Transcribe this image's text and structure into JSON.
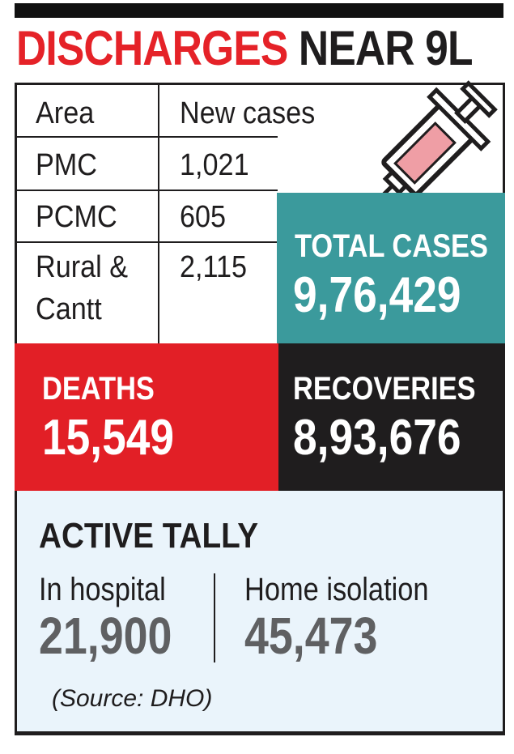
{
  "headline": {
    "part1": "DISCHARGES",
    "part2": "NEAR 9L"
  },
  "table": {
    "headers": [
      "Area",
      "New cases"
    ],
    "rows": [
      {
        "area": "PMC",
        "cases": "1,021"
      },
      {
        "area": "PCMC",
        "cases": "605"
      },
      {
        "area_line1": "Rural &",
        "area_line2": "Cantt",
        "cases": "2,115"
      }
    ]
  },
  "total_cases": {
    "label": "TOTAL CASES",
    "value": "9,76,429"
  },
  "deaths": {
    "label": "DEATHS",
    "value": "15,549"
  },
  "recoveries": {
    "label": "RECOVERIES",
    "value": "8,93,676"
  },
  "active_tally": {
    "title": "ACTIVE TALLY",
    "hospital_label": "In hospital",
    "hospital_value": "21,900",
    "home_label": "Home isolation",
    "home_value": "45,473"
  },
  "source": "(Source: DHO)",
  "icon": "syringe-icon",
  "colors": {
    "headline_red": "#e52228",
    "teal": "#3b9a9c",
    "deaths_red": "#e21f26",
    "recoveries_black": "#1f1d1e",
    "active_bg": "#eaf4fb",
    "value_gray": "#5f6062"
  }
}
